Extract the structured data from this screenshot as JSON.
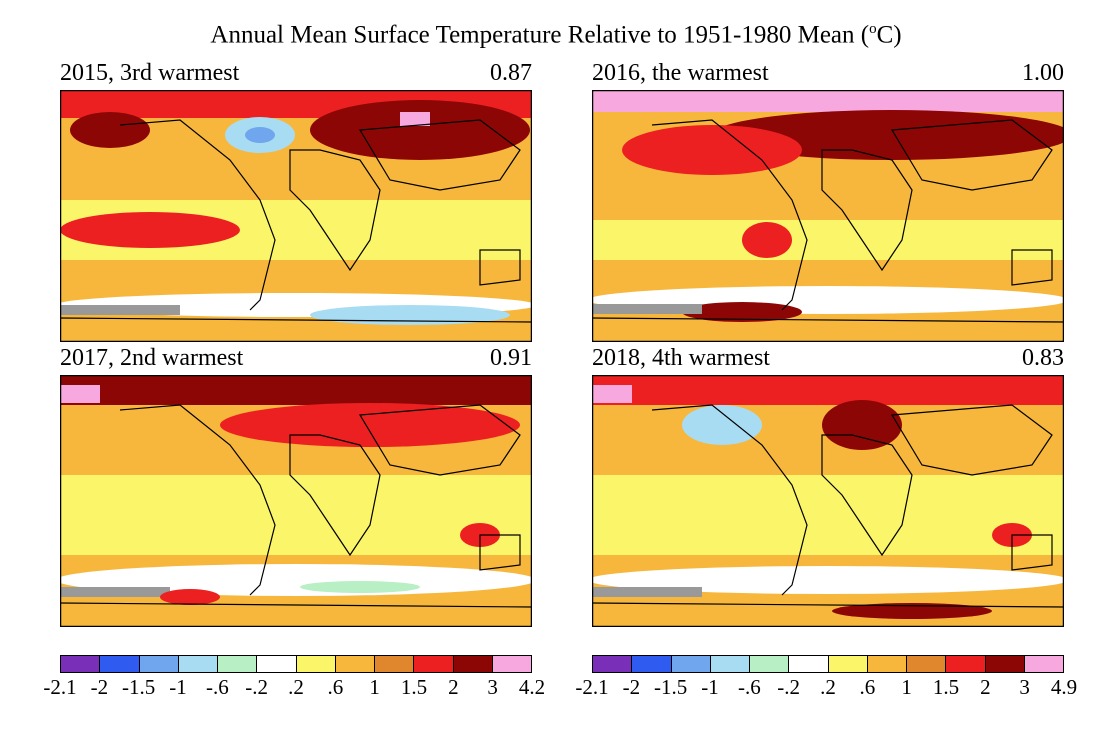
{
  "title_main": "Annual Mean Surface Temperature Relative to 1951-1980 Mean (",
  "title_unit_sup": "o",
  "title_unit_end": "C)",
  "panels": [
    {
      "label": "2015, 3rd warmest",
      "value": "0.87"
    },
    {
      "label": "2016, the warmest",
      "value": "1.00"
    },
    {
      "label": "2017, 2nd warmest",
      "value": "0.91"
    },
    {
      "label": "2018, 4th warmest",
      "value": "0.83"
    }
  ],
  "colors": [
    "#7a2fb8",
    "#2f5bf0",
    "#6fa6ee",
    "#a8dcf2",
    "#b8efc4",
    "#ffffff",
    "#fbf56a",
    "#f7b73d",
    "#e0872e",
    "#ec2020",
    "#8d0606",
    "#f7a8df"
  ],
  "colorbars": [
    {
      "labels": [
        "-2.1",
        "-2",
        "-1.5",
        "-1",
        "-.6",
        "-.2",
        ".2",
        ".6",
        "1",
        "1.5",
        "2",
        "3",
        "4.2"
      ]
    },
    {
      "labels": [
        "-2.1",
        "-2",
        "-1.5",
        "-1",
        "-.6",
        "-.2",
        ".2",
        ".6",
        "1",
        "1.5",
        "2",
        "3",
        "4.9"
      ]
    }
  ]
}
